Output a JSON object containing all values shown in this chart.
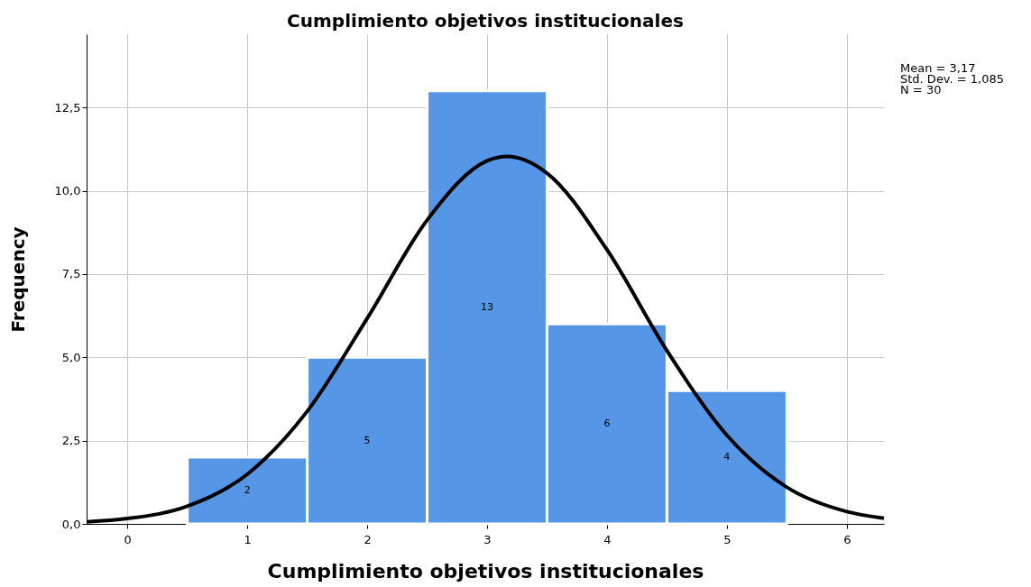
{
  "chart_data": {
    "type": "histogram",
    "title": "Cumplimiento objetivos institucionales",
    "xlabel": "Cumplimiento objetivos institucionales",
    "ylabel": "Frequency",
    "bins": [
      0.5,
      1.5,
      2.5,
      3.5,
      4.5,
      5.5
    ],
    "values": [
      2,
      5,
      13,
      6,
      4
    ],
    "color": "#5596e6",
    "value_labels": [
      "2",
      "5",
      "13",
      "6",
      "4"
    ],
    "series": [
      {
        "type": "line",
        "color": "#000000",
        "x": [
          -0.34,
          0,
          0.5,
          1,
          1.5,
          2,
          2.5,
          3,
          3.17,
          3.5,
          4,
          4.5,
          5,
          5.5,
          6,
          6.31
        ],
        "values": [
          0.06,
          0.16,
          0.53,
          1.49,
          3.38,
          6.17,
          9.12,
          10.9,
          11.03,
          10.53,
          8.23,
          5.2,
          2.66,
          1.1,
          0.37,
          0.17
        ]
      }
    ],
    "xlim": [
      -0.34,
      6.31
    ],
    "xticks": [
      0,
      1,
      2,
      3,
      4,
      5,
      6
    ],
    "ylim": [
      0,
      14.7
    ],
    "yticks": [
      {
        "value": 0,
        "label": "0,0"
      },
      {
        "value": 2.5,
        "label": "2,5"
      },
      {
        "value": 5,
        "label": "5,0"
      },
      {
        "value": 7.5,
        "label": "7,5"
      },
      {
        "value": 10,
        "label": "10,0"
      },
      {
        "value": 12.5,
        "label": "12,5"
      }
    ],
    "grid": true,
    "line_style": "solid",
    "annotations": [
      "Mean = 3,17",
      "Std. Dev. = 1,085",
      "N = 30"
    ]
  }
}
